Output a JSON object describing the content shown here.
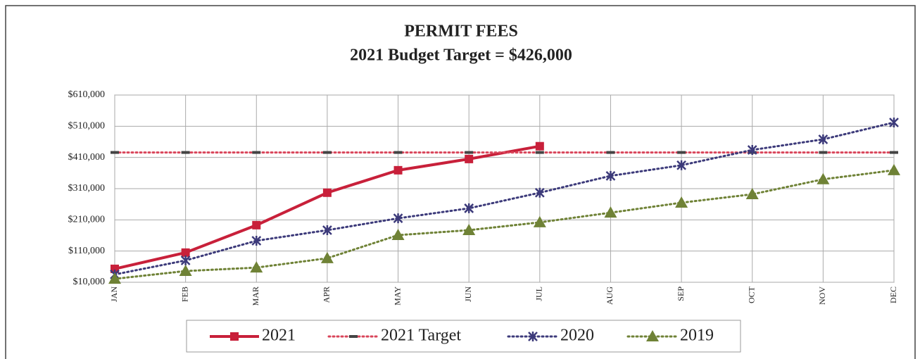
{
  "chart_data": {
    "type": "line",
    "title": "PERMIT FEES",
    "subtitle": "2021 Budget Target = $426,000",
    "categories": [
      "JAN",
      "FEB",
      "MAR",
      "APR",
      "MAY",
      "JUN",
      "JUL",
      "AUG",
      "SEP",
      "OCT",
      "NOV",
      "DEC"
    ],
    "series": [
      {
        "name": "2021",
        "color": "#c8203a",
        "line_style": "solid",
        "marker": "square",
        "values": [
          53000,
          105000,
          193000,
          297000,
          369000,
          405000,
          446000,
          null,
          null,
          null,
          null,
          null
        ]
      },
      {
        "name": "2021 Target",
        "color": "#d9455a",
        "line_style": "dotted",
        "marker": "dash",
        "values": [
          426000,
          426000,
          426000,
          426000,
          426000,
          426000,
          426000,
          426000,
          426000,
          426000,
          426000,
          426000
        ]
      },
      {
        "name": "2020",
        "color": "#3c3a7a",
        "line_style": "dotted",
        "marker": "x",
        "values": [
          35000,
          80000,
          143000,
          177000,
          215000,
          247000,
          297000,
          351000,
          385000,
          434000,
          468000,
          522000
        ]
      },
      {
        "name": "2019",
        "color": "#6f8236",
        "line_style": "dotted",
        "marker": "triangle",
        "values": [
          21000,
          46000,
          57000,
          87000,
          161000,
          177000,
          202000,
          233000,
          265000,
          292000,
          340000,
          369000
        ]
      }
    ],
    "ylim": [
      10000,
      610000
    ],
    "yticks": [
      {
        "value": 10000,
        "label": "$10,000"
      },
      {
        "value": 110000,
        "label": "$110,000"
      },
      {
        "value": 210000,
        "label": "$210,000"
      },
      {
        "value": 310000,
        "label": "$310,000"
      },
      {
        "value": 410000,
        "label": "$410,000"
      },
      {
        "value": 510000,
        "label": "$510,000"
      },
      {
        "value": 610000,
        "label": "$610,000"
      }
    ],
    "grid": true,
    "legend": "bottom"
  }
}
